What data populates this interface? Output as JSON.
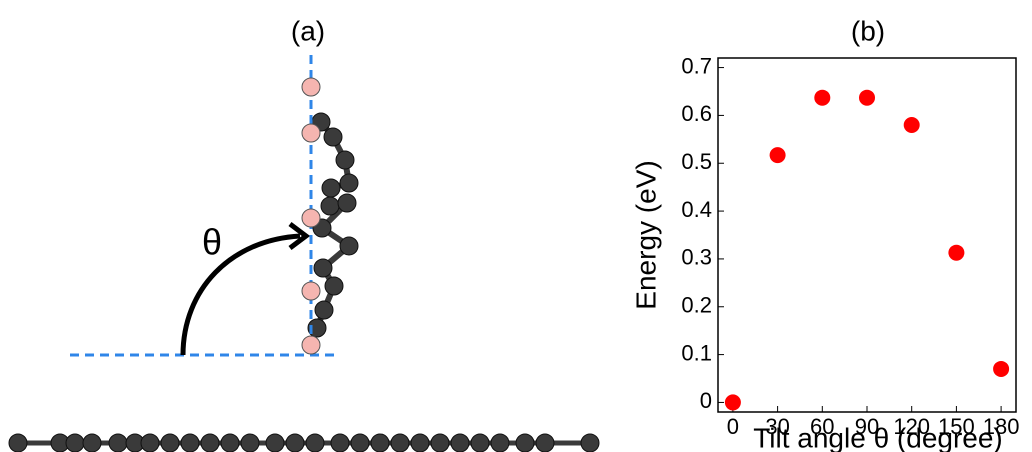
{
  "diagram": {
    "title": "(a)",
    "angle_label": "θ"
  },
  "chart_data": {
    "type": "scatter",
    "title": "(b)",
    "xlabel": "Tilt angle θ (degree)",
    "ylabel": "Energy (eV)",
    "x": [
      0,
      30,
      60,
      90,
      120,
      150,
      180
    ],
    "values": [
      0,
      0.517,
      0.637,
      0.637,
      0.58,
      0.313,
      0.07
    ],
    "color": "#ff0000",
    "xlim": [
      -10,
      190
    ],
    "ylim": [
      -0.02,
      0.72
    ],
    "xticks": [
      0,
      30,
      60,
      90,
      120,
      150,
      180
    ],
    "yticks": [
      0,
      0.1,
      0.2,
      0.3,
      0.4,
      0.5,
      0.6,
      0.7
    ]
  }
}
